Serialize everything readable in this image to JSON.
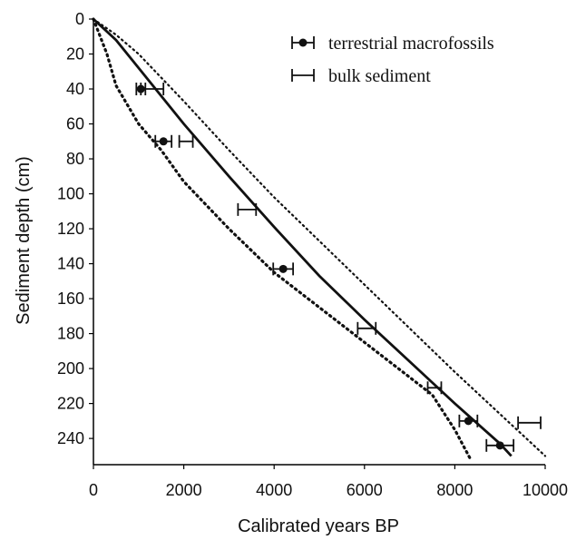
{
  "chart_data": {
    "type": "scatter",
    "xlabel": "Calibrated years BP",
    "ylabel": "Sediment depth (cm)",
    "xlim": [
      0,
      10000
    ],
    "ylim": [
      0,
      255
    ],
    "y_inverted": true,
    "xticks": [
      0,
      2000,
      4000,
      6000,
      8000,
      10000
    ],
    "yticks": [
      0,
      20,
      40,
      60,
      80,
      100,
      120,
      140,
      160,
      180,
      200,
      220,
      240
    ],
    "legend_position": "top-right",
    "legend": [
      {
        "label": "terrestrial macrofossils",
        "marker": "dot-with-errorbar"
      },
      {
        "label": "bulk sediment",
        "marker": "errorbar"
      }
    ],
    "series": [
      {
        "name": "terrestrial macrofossils",
        "points": [
          {
            "x": 1050,
            "y": 40,
            "xerr": 100
          },
          {
            "x": 1550,
            "y": 70,
            "xerr": 180
          },
          {
            "x": 4200,
            "y": 143,
            "xerr": 220
          },
          {
            "x": 8300,
            "y": 230,
            "xerr": 200
          },
          {
            "x": 9000,
            "y": 244,
            "xerr": 300
          }
        ]
      },
      {
        "name": "bulk sediment",
        "points": [
          {
            "x": 1300,
            "y": 40,
            "xerr": 250
          },
          {
            "x": 2050,
            "y": 70,
            "xerr": 150
          },
          {
            "x": 3400,
            "y": 109,
            "xerr": 200
          },
          {
            "x": 6050,
            "y": 177,
            "xerr": 200
          },
          {
            "x": 7550,
            "y": 211,
            "xerr": 150
          },
          {
            "x": 9650,
            "y": 231,
            "xerr": 250
          }
        ]
      }
    ],
    "age_depth_model": [
      [
        0,
        0
      ],
      [
        500,
        12
      ],
      [
        1000,
        28
      ],
      [
        2000,
        60
      ],
      [
        3000,
        90
      ],
      [
        4000,
        119
      ],
      [
        5000,
        147
      ],
      [
        6000,
        172
      ],
      [
        7000,
        196
      ],
      [
        8000,
        220
      ],
      [
        9000,
        243
      ],
      [
        9250,
        250
      ]
    ],
    "confidence_upper": [
      [
        0,
        0
      ],
      [
        500,
        9
      ],
      [
        1000,
        20
      ],
      [
        2000,
        47
      ],
      [
        3000,
        75
      ],
      [
        4000,
        102
      ],
      [
        5000,
        127
      ],
      [
        6000,
        152
      ],
      [
        7000,
        177
      ],
      [
        8000,
        202
      ],
      [
        9000,
        226
      ],
      [
        10000,
        250
      ]
    ],
    "confidence_lower": [
      [
        0,
        0
      ],
      [
        300,
        20
      ],
      [
        500,
        38
      ],
      [
        1000,
        60
      ],
      [
        1500,
        75
      ],
      [
        2000,
        93
      ],
      [
        3000,
        120
      ],
      [
        4000,
        145
      ],
      [
        5000,
        165
      ],
      [
        6000,
        185
      ],
      [
        7000,
        205
      ],
      [
        7500,
        215
      ],
      [
        8000,
        235
      ],
      [
        8350,
        252
      ]
    ],
    "colors": {
      "curve": "#111111",
      "markers": "#111111",
      "axis": "#000000"
    }
  }
}
